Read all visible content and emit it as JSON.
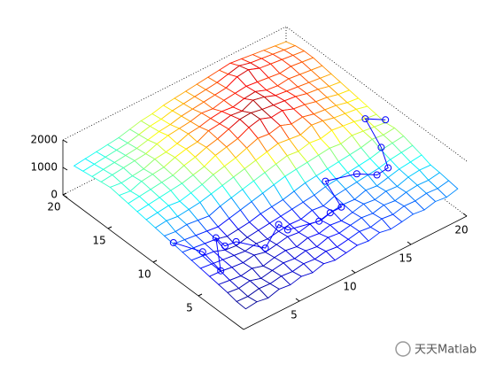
{
  "chart_data": {
    "type": "mesh3d",
    "x": [
      1,
      2,
      3,
      4,
      5,
      6,
      7,
      8,
      9,
      10,
      11,
      12,
      13,
      14,
      15,
      16,
      17,
      18,
      19,
      20
    ],
    "y": [
      1,
      2,
      3,
      4,
      5,
      6,
      7,
      8,
      9,
      10,
      11,
      12,
      13,
      14,
      15,
      16,
      17,
      18,
      19,
      20
    ],
    "z": [
      [
        300,
        350,
        280,
        400,
        350,
        450,
        380,
        500,
        420,
        480,
        550,
        500,
        600,
        520,
        580,
        650,
        600,
        700,
        650,
        750
      ],
      [
        320,
        300,
        380,
        350,
        420,
        380,
        460,
        420,
        500,
        450,
        520,
        600,
        550,
        650,
        600,
        700,
        680,
        750,
        720,
        800
      ],
      [
        400,
        350,
        420,
        300,
        380,
        450,
        400,
        480,
        420,
        550,
        500,
        580,
        650,
        600,
        700,
        650,
        750,
        800,
        780,
        850
      ],
      [
        450,
        400,
        350,
        420,
        300,
        400,
        450,
        380,
        500,
        450,
        550,
        500,
        600,
        700,
        650,
        750,
        720,
        850,
        900,
        880
      ],
      [
        500,
        480,
        420,
        380,
        450,
        350,
        420,
        500,
        450,
        550,
        480,
        600,
        650,
        620,
        750,
        700,
        800,
        900,
        950,
        1000
      ],
      [
        550,
        500,
        450,
        400,
        350,
        420,
        380,
        450,
        500,
        480,
        600,
        550,
        700,
        750,
        800,
        850,
        900,
        1000,
        1050,
        1100
      ],
      [
        600,
        550,
        500,
        350,
        300,
        400,
        450,
        500,
        550,
        600,
        650,
        700,
        800,
        850,
        900,
        950,
        1000,
        1100,
        1150,
        1200
      ],
      [
        650,
        600,
        550,
        500,
        400,
        450,
        500,
        600,
        650,
        700,
        800,
        900,
        950,
        1000,
        1050,
        1100,
        1150,
        1250,
        1200,
        1250
      ],
      [
        700,
        650,
        600,
        550,
        500,
        600,
        700,
        800,
        900,
        1000,
        1100,
        1150,
        1200,
        1250,
        1300,
        1250,
        1350,
        1300,
        1250,
        1200
      ],
      [
        750,
        700,
        750,
        700,
        650,
        800,
        900,
        1000,
        1100,
        1200,
        1300,
        1400,
        1350,
        1450,
        1400,
        1500,
        1450,
        1400,
        1300,
        1250
      ],
      [
        800,
        850,
        800,
        850,
        900,
        1000,
        1100,
        1200,
        1300,
        1400,
        1500,
        1600,
        1550,
        1500,
        1650,
        1600,
        1500,
        1450,
        1400,
        1300
      ],
      [
        850,
        900,
        950,
        900,
        1000,
        1100,
        1250,
        1350,
        1450,
        1600,
        1750,
        1700,
        1800,
        1650,
        1700,
        1600,
        1550,
        1500,
        1400,
        1350
      ],
      [
        900,
        950,
        1000,
        1050,
        1100,
        1200,
        1300,
        1500,
        1600,
        1700,
        1900,
        2000,
        1850,
        1900,
        1750,
        1700,
        1600,
        1550,
        1450,
        1400
      ],
      [
        950,
        1000,
        1050,
        1100,
        1150,
        1300,
        1400,
        1550,
        1650,
        1800,
        1950,
        1980,
        1900,
        1850,
        1800,
        1750,
        1650,
        1600,
        1500,
        1450
      ],
      [
        1000,
        950,
        1100,
        1150,
        1200,
        1350,
        1450,
        1500,
        1700,
        1750,
        1850,
        1800,
        1990,
        1900,
        1750,
        1700,
        1650,
        1600,
        1550,
        1500
      ],
      [
        1050,
        1000,
        1050,
        1100,
        1250,
        1300,
        1400,
        1550,
        1600,
        1700,
        1750,
        1700,
        1800,
        1850,
        1700,
        1650,
        1700,
        1650,
        1600,
        1550
      ],
      [
        1000,
        1050,
        1100,
        1150,
        1200,
        1350,
        1450,
        1500,
        1550,
        1650,
        1600,
        1700,
        1750,
        1800,
        1750,
        1700,
        1650,
        1700,
        1650,
        1600
      ],
      [
        950,
        1000,
        1050,
        1100,
        1150,
        1250,
        1350,
        1400,
        1500,
        1550,
        1600,
        1650,
        1700,
        1900,
        1950,
        1800,
        1750,
        1700,
        1650,
        1600
      ],
      [
        900,
        950,
        1000,
        1050,
        1100,
        1200,
        1300,
        1350,
        1450,
        1500,
        1550,
        1600,
        1650,
        1750,
        1850,
        1750,
        1700,
        1650,
        1600,
        1550
      ],
      [
        850,
        900,
        950,
        1000,
        1050,
        1150,
        1250,
        1300,
        1400,
        1450,
        1500,
        1550,
        1600,
        1650,
        1700,
        1650,
        1600,
        1550,
        1500,
        1450
      ]
    ],
    "colormap": "jet",
    "xlim": [
      0,
      20
    ],
    "ylim": [
      0,
      20
    ],
    "zlim": [
      0,
      2000
    ],
    "xticks": [
      5,
      10,
      15,
      20
    ],
    "yticks": [
      5,
      10,
      15,
      20
    ],
    "zticks": [
      0,
      1000,
      2000
    ],
    "path": {
      "color": "#0000ff",
      "marker": "circle",
      "x": [
        1,
        2,
        2,
        4,
        4,
        5,
        6,
        8,
        8,
        10,
        11,
        12,
        13,
        15,
        16,
        17,
        18,
        19,
        20
      ],
      "y": [
        9,
        7,
        5,
        8,
        7,
        7,
        5,
        6,
        5,
        4,
        4,
        4,
        7,
        6,
        5,
        5,
        7,
        10,
        9
      ],
      "z": [
        750,
        700,
        500,
        550,
        500,
        450,
        500,
        700,
        750,
        900,
        1000,
        1000,
        1000,
        1100,
        1100,
        1150,
        1200,
        1300,
        1300
      ]
    },
    "watermark": "天天Matlab"
  }
}
